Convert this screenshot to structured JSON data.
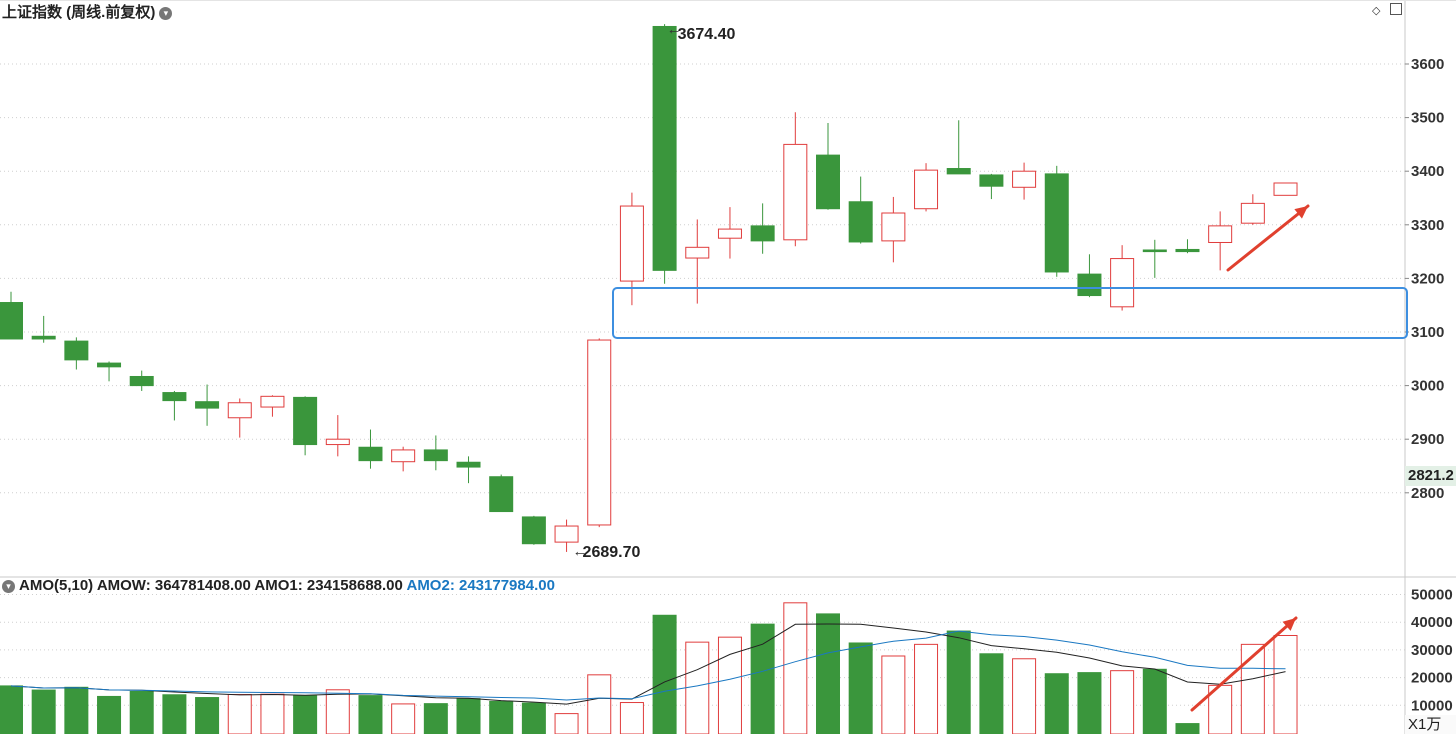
{
  "header": {
    "title": "上证指数 (周线.前复权)",
    "dropdown_glyph": "▾",
    "right_icons": [
      "diamond-icon",
      "square-icon"
    ]
  },
  "price_panel": {
    "y_ticks": [
      3600,
      3500,
      3400,
      3300,
      3200,
      3100,
      3000,
      2900,
      2800
    ],
    "y_range": [
      2650,
      3700
    ],
    "current_price_label": "2821.2",
    "high_annotation": "3674.40",
    "low_annotation": "2689.70"
  },
  "volume_panel": {
    "indicator_label": "AMO(5,10)",
    "amow_label": "AMOW: 364781408.00",
    "amo1_label": "AMO1: 234158688.00",
    "amo2_label": "AMO2: 243177984.00",
    "y_tick_labels": [
      "50000",
      "40000",
      "30000",
      "20000",
      "10000"
    ],
    "y_tick_values": [
      50000,
      40000,
      30000,
      20000,
      10000
    ],
    "unit_label": "X1万"
  },
  "colors": {
    "up": "#e03c3c",
    "down": "#3a963c",
    "ma5": "#222222",
    "ma10": "#1a78c2",
    "highlight_box": "#3d8fe0",
    "arrow": "#e0402e",
    "grid": "#cfcfcf"
  },
  "chart_data": {
    "type": "candlestick",
    "candles": [
      {
        "o": 3155,
        "c": 3087,
        "h": 3175,
        "l": 3087,
        "v": 17000
      },
      {
        "o": 3092,
        "c": 3087,
        "h": 3130,
        "l": 3080,
        "v": 15500
      },
      {
        "o": 3083,
        "c": 3048,
        "h": 3090,
        "l": 3030,
        "v": 16500
      },
      {
        "o": 3042,
        "c": 3035,
        "h": 3045,
        "l": 3008,
        "v": 13200
      },
      {
        "o": 3017,
        "c": 3000,
        "h": 3028,
        "l": 2990,
        "v": 15000
      },
      {
        "o": 2987,
        "c": 2972,
        "h": 2990,
        "l": 2935,
        "v": 13800
      },
      {
        "o": 2970,
        "c": 2958,
        "h": 3002,
        "l": 2925,
        "v": 12800
      },
      {
        "o": 2940,
        "c": 2968,
        "h": 2976,
        "l": 2903,
        "v": 13900
      },
      {
        "o": 2960,
        "c": 2980,
        "h": 2982,
        "l": 2942,
        "v": 14000
      },
      {
        "o": 2978,
        "c": 2890,
        "h": 2980,
        "l": 2870,
        "v": 13500
      },
      {
        "o": 2890,
        "c": 2900,
        "h": 2945,
        "l": 2868,
        "v": 15600
      },
      {
        "o": 2885,
        "c": 2860,
        "h": 2918,
        "l": 2845,
        "v": 13500
      },
      {
        "o": 2858,
        "c": 2880,
        "h": 2886,
        "l": 2840,
        "v": 10500
      },
      {
        "o": 2880,
        "c": 2860,
        "h": 2907,
        "l": 2842,
        "v": 10600
      },
      {
        "o": 2857,
        "c": 2848,
        "h": 2868,
        "l": 2818,
        "v": 12400
      },
      {
        "o": 2830,
        "c": 2765,
        "h": 2834,
        "l": 2765,
        "v": 11400
      },
      {
        "o": 2755,
        "c": 2705,
        "h": 2757,
        "l": 2703,
        "v": 10800
      },
      {
        "o": 2708,
        "c": 2738,
        "h": 2750,
        "l": 2689.7,
        "v": 7000
      },
      {
        "o": 2740,
        "c": 3085,
        "h": 3088,
        "l": 2736,
        "v": 21000
      },
      {
        "o": 3195,
        "c": 3335,
        "h": 3360,
        "l": 3150,
        "v": 11000
      },
      {
        "o": 3670,
        "c": 3215,
        "h": 3674.4,
        "l": 3190,
        "v": 42500
      },
      {
        "o": 3238,
        "c": 3258,
        "h": 3310,
        "l": 3153,
        "v": 32800
      },
      {
        "o": 3275,
        "c": 3292,
        "h": 3333,
        "l": 3237,
        "v": 34600
      },
      {
        "o": 3298,
        "c": 3270,
        "h": 3340,
        "l": 3246,
        "v": 39300
      },
      {
        "o": 3272,
        "c": 3450,
        "h": 3510,
        "l": 3260,
        "v": 47000
      },
      {
        "o": 3430,
        "c": 3330,
        "h": 3490,
        "l": 3328,
        "v": 43000
      },
      {
        "o": 3343,
        "c": 3268,
        "h": 3390,
        "l": 3265,
        "v": 32500
      },
      {
        "o": 3270,
        "c": 3322,
        "h": 3352,
        "l": 3230,
        "v": 27800
      },
      {
        "o": 3330,
        "c": 3402,
        "h": 3415,
        "l": 3325,
        "v": 32000
      },
      {
        "o": 3405,
        "c": 3395,
        "h": 3495,
        "l": 3395,
        "v": 36800
      },
      {
        "o": 3393,
        "c": 3372,
        "h": 3395,
        "l": 3348,
        "v": 28600
      },
      {
        "o": 3370,
        "c": 3400,
        "h": 3416,
        "l": 3347,
        "v": 26800
      },
      {
        "o": 3395,
        "c": 3212,
        "h": 3410,
        "l": 3203,
        "v": 21400
      },
      {
        "o": 3208,
        "c": 3168,
        "h": 3245,
        "l": 3165,
        "v": 21800
      },
      {
        "o": 3147,
        "c": 3237,
        "h": 3262,
        "l": 3140,
        "v": 22500
      },
      {
        "o": 3253,
        "c": 3250,
        "h": 3272,
        "l": 3201,
        "v": 23000
      },
      {
        "o": 3254,
        "c": 3250,
        "h": 3273,
        "l": 3247,
        "v": 3400
      },
      {
        "o": 3267,
        "c": 3298,
        "h": 3325,
        "l": 3215,
        "v": 17200
      },
      {
        "o": 3303,
        "c": 3340,
        "h": 3357,
        "l": 3300,
        "v": 32000
      },
      {
        "o": 3355,
        "c": 3378,
        "h": 3378,
        "l": 3355,
        "v": 35200
      }
    ]
  }
}
